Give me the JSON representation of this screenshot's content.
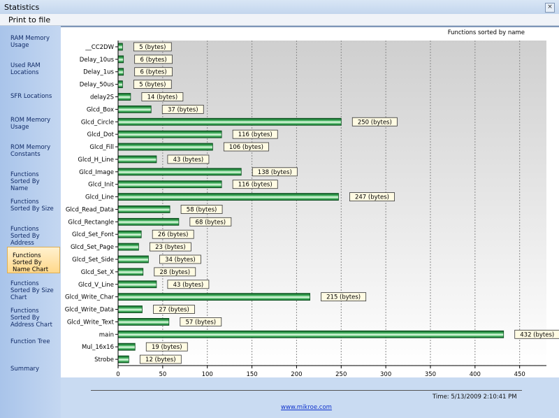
{
  "window": {
    "title": "Statistics",
    "close_glyph": "×"
  },
  "menu": {
    "print": "Print to file"
  },
  "sidebar": {
    "items": [
      {
        "label": "RAM Memory Usage",
        "active": false
      },
      {
        "label": "Used RAM Locations",
        "active": false
      },
      {
        "label": "SFR Locations",
        "active": false
      },
      {
        "label": "ROM Memory Usage",
        "active": false
      },
      {
        "label": "ROM Memory Constants",
        "active": false
      },
      {
        "label": "Functions Sorted By  Name",
        "active": false
      },
      {
        "label": "Functions Sorted By Size",
        "active": false
      },
      {
        "label": "Functions Sorted By Address",
        "active": false
      },
      {
        "label": "Functions Sorted By Name Chart",
        "active": true
      },
      {
        "label": "Functions Sorted By Size Chart",
        "active": false
      },
      {
        "label": "Functions Sorted By Address Chart",
        "active": false
      },
      {
        "label": "Function Tree",
        "active": false
      },
      {
        "label": "Summary",
        "active": false
      }
    ]
  },
  "chart_data": {
    "type": "bar",
    "orientation": "horizontal",
    "title": "Functions sorted by name",
    "xlabel": "",
    "ylabel": "",
    "xlim": [
      0,
      480
    ],
    "xticks": [
      0,
      50,
      100,
      150,
      200,
      250,
      300,
      350,
      400,
      450
    ],
    "grid": true,
    "categories": [
      "__CC2DW",
      "Delay_10us",
      "Delay_1us",
      "Delay_50us",
      "delay2S",
      "Glcd_Box",
      "Glcd_Circle",
      "Glcd_Dot",
      "Glcd_Fill",
      "Glcd_H_Line",
      "Glcd_Image",
      "Glcd_Init",
      "Glcd_Line",
      "Glcd_Read_Data",
      "Glcd_Rectangle",
      "Glcd_Set_Font",
      "Glcd_Set_Page",
      "Glcd_Set_Side",
      "Glcd_Set_X",
      "Glcd_V_Line",
      "Glcd_Write_Char",
      "Glcd_Write_Data",
      "Glcd_Write_Text",
      "main",
      "Mul_16x16",
      "Strobe"
    ],
    "values": [
      5,
      6,
      6,
      5,
      14,
      37,
      250,
      116,
      106,
      43,
      138,
      116,
      247,
      58,
      68,
      26,
      23,
      34,
      28,
      43,
      215,
      27,
      57,
      432,
      19,
      12
    ],
    "value_labels": [
      "5 (bytes)",
      "6 (bytes)",
      "6 (bytes)",
      "5 (bytes)",
      "14 (bytes)",
      "37 (bytes)",
      "250 (bytes)",
      "116 (bytes)",
      "106 (bytes)",
      "43 (bytes)",
      "138 (bytes)",
      "116 (bytes)",
      "247 (bytes)",
      "58 (bytes)",
      "68 (bytes)",
      "26 (bytes)",
      "23 (bytes)",
      "34 (bytes)",
      "28 (bytes)",
      "43 (bytes)",
      "215 (bytes)",
      "27 (bytes)",
      "57 (bytes)",
      "432 (bytes)",
      "19 (bytes)",
      "12 (bytes)"
    ],
    "bar_color": "#1f8a3a"
  },
  "footer": {
    "timestamp": "Time: 5/13/2009 2:10:41 PM",
    "link": "www.mikroe.com"
  }
}
